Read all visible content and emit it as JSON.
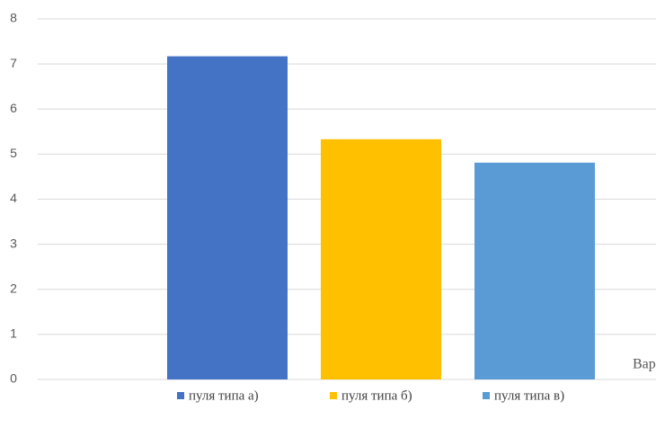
{
  "chart_data": {
    "type": "bar",
    "categories": [
      null
    ],
    "series": [
      {
        "name": "пуля типа а)",
        "color": "#4472c4",
        "values": [
          7.17
        ]
      },
      {
        "name": "пуля типа б)",
        "color": "#ffc000",
        "values": [
          5.33
        ]
      },
      {
        "name": "пуля типа в)",
        "color": "#5b9bd5",
        "values": [
          4.81
        ]
      }
    ],
    "x_label": "Вар",
    "ylim": [
      0,
      8
    ],
    "yticks": [
      0,
      1,
      2,
      3,
      4,
      5,
      6,
      7,
      8
    ],
    "grid": true,
    "legend": "bottom"
  }
}
